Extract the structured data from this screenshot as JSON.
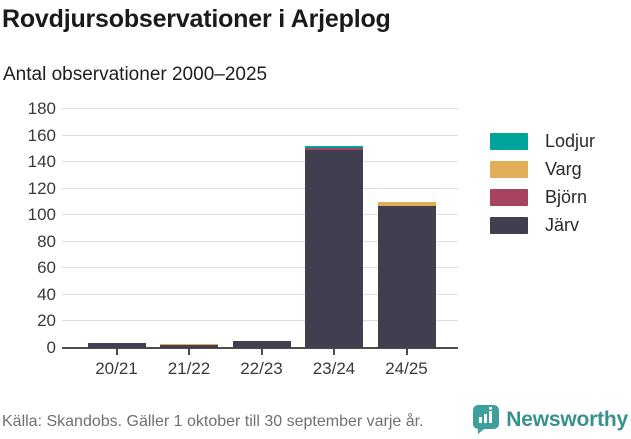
{
  "title": "Rovdjursobservationer i Arjeplog",
  "subtitle": "Antal observationer 2000–2025",
  "footer": {
    "source": "Källa: Skandobs. Gäller 1 oktober till 30 september varje år.",
    "brand": "Newsworthy"
  },
  "colors": {
    "lodjur": "#00A39A",
    "varg": "#DFAE56",
    "bjorn": "#A64460",
    "jarv": "#413E50",
    "gridline": "#dcdcdc",
    "axis": "#4d4d4d",
    "brand_teal": "#3FA09B",
    "brand_text": "#38918d",
    "source_text": "#707070"
  },
  "chart_data": {
    "type": "bar",
    "stacked": true,
    "title": "Rovdjursobservationer i Arjeplog",
    "subtitle": "Antal observationer 2000–2025",
    "categories": [
      "20/21",
      "21/22",
      "22/23",
      "23/24",
      "24/25"
    ],
    "series": [
      {
        "name": "Järv",
        "color": "#413E50",
        "values": [
          4,
          2,
          5,
          149,
          107
        ]
      },
      {
        "name": "Björn",
        "color": "#A64460",
        "values": [
          0,
          0,
          0,
          2,
          0
        ]
      },
      {
        "name": "Varg",
        "color": "#DFAE56",
        "values": [
          0,
          1,
          0,
          0,
          3
        ]
      },
      {
        "name": "Lodjur",
        "color": "#00A39A",
        "values": [
          0,
          0,
          0,
          1,
          0
        ]
      }
    ],
    "totals": [
      4,
      3,
      5,
      152,
      110
    ],
    "legend": {
      "position": "right",
      "order": [
        "Lodjur",
        "Varg",
        "Björn",
        "Järv"
      ]
    },
    "xlabel": "",
    "ylabel": "",
    "ylim": [
      0,
      180
    ],
    "ytick_step": 20,
    "grid": true
  }
}
